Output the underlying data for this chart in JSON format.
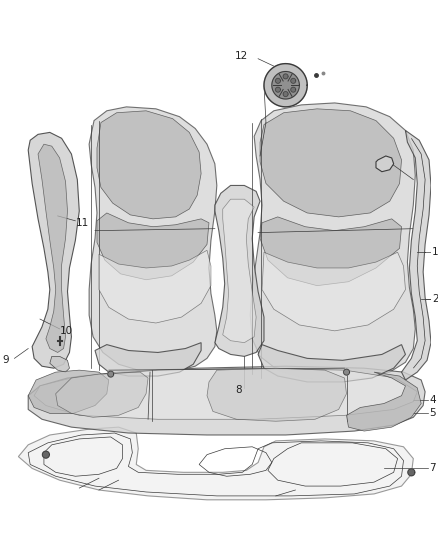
{
  "background_color": "#ffffff",
  "fig_width": 4.38,
  "fig_height": 5.33,
  "dpi": 100,
  "line_color": "#3a3a3a",
  "label_fontsize": 7.5,
  "label_color": "#222222",
  "leader_lw": 0.5,
  "main_lw": 0.8,
  "thin_lw": 0.5,
  "fill_gray1": "#d0d0d0",
  "fill_gray2": "#b8b8b8",
  "fill_gray3": "#e8e8e8",
  "fill_gray4": "#c8c8c8"
}
